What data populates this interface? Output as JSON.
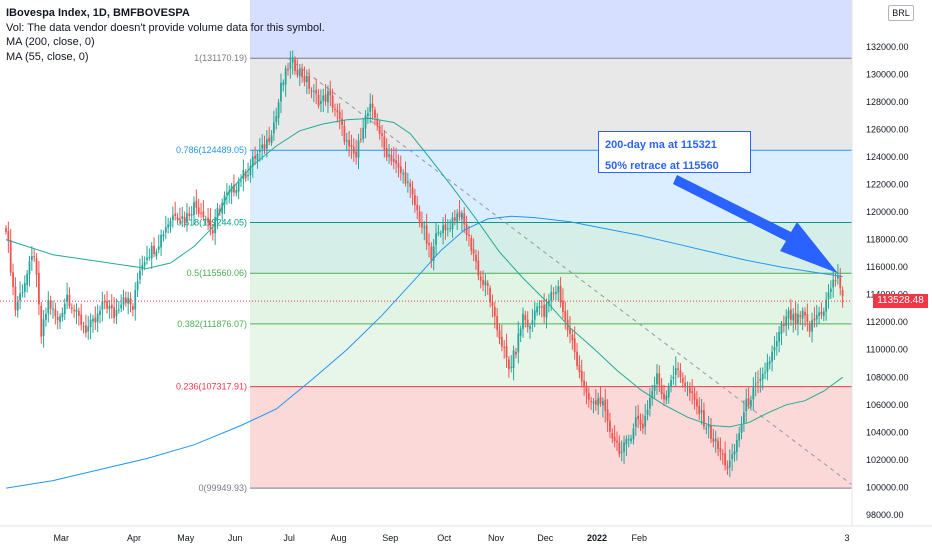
{
  "legend": {
    "title": "IBovespa Index, 1D, BMFBOVESPA",
    "vol": "Vol: The data vendor doesn't provide volume data for this symbol.",
    "ma200": "MA (200, close, 0)",
    "ma55": "MA (55, close, 0)"
  },
  "currency_badge": "BRL",
  "last_price": "113528.48",
  "annotations": [
    "200-day ma at 115321",
    "50% retrace at 115560"
  ],
  "colors": {
    "up": "#26a69a",
    "down": "#ef5350",
    "ma200": "#2196f3",
    "ma55": "#22ab94",
    "arrow": "#2962ff",
    "price_tag": "#f23645"
  },
  "chart_data": {
    "type": "candlestick",
    "symbol": "IBovespa Index",
    "interval": "1D",
    "exchange": "BMFBOVESPA",
    "x_labels": [
      "Mar",
      "Apr",
      "May",
      "Jun",
      "Jul",
      "Aug",
      "Sep",
      "Oct",
      "Nov",
      "Dec",
      "2022",
      "Feb",
      "3"
    ],
    "y_ticks": [
      "132000.00",
      "130000.00",
      "128000.00",
      "126000.00",
      "124000.00",
      "122000.00",
      "120000.00",
      "118000.00",
      "116000.00",
      "114000.00",
      "112000.00",
      "110000.00",
      "108000.00",
      "106000.00",
      "104000.00",
      "102000.00",
      "100000.00",
      "98000.00"
    ],
    "y_range": [
      97200,
      135400
    ],
    "last_price": 113528.48,
    "fib_levels": [
      {
        "ratio": "1",
        "value": "131170.19",
        "color": "#787b86"
      },
      {
        "ratio": "0.786",
        "value": "124489.05",
        "color": "#2196f3"
      },
      {
        "ratio": "0.618",
        "value": "119244.05",
        "color": "#089981"
      },
      {
        "ratio": "0.5",
        "value": "115560.06",
        "color": "#4caf50"
      },
      {
        "ratio": "0.382",
        "value": "111876.07",
        "color": "#4caf50"
      },
      {
        "ratio": "0.236",
        "value": "107317.91",
        "color": "#f23645"
      },
      {
        "ratio": "0",
        "value": "99949.93",
        "color": "#787b86"
      }
    ],
    "fib_zone_colors": [
      "#d6dfff",
      "#e8e8e8",
      "#dbeeff",
      "#d5efe8",
      "#e2f5e5",
      "#e8f5e9",
      "#fcd9d9"
    ],
    "price_path": [
      [
        0,
        119000
      ],
      [
        4,
        113000
      ],
      [
        8,
        115000
      ],
      [
        12,
        117000
      ],
      [
        15,
        111000
      ],
      [
        18,
        113500
      ],
      [
        22,
        112000
      ],
      [
        26,
        114000
      ],
      [
        30,
        112500
      ],
      [
        34,
        111500
      ],
      [
        38,
        112000
      ],
      [
        42,
        113500
      ],
      [
        46,
        112500
      ],
      [
        50,
        114000
      ],
      [
        54,
        113000
      ],
      [
        57,
        116000
      ],
      [
        60,
        117000
      ],
      [
        64,
        117500
      ],
      [
        68,
        119000
      ],
      [
        72,
        120000
      ],
      [
        76,
        119500
      ],
      [
        80,
        120500
      ],
      [
        84,
        120000
      ],
      [
        88,
        118500
      ],
      [
        90,
        120000
      ],
      [
        93,
        121000
      ],
      [
        96,
        121500
      ],
      [
        100,
        122500
      ],
      [
        103,
        123000
      ],
      [
        106,
        124000
      ],
      [
        109,
        124500
      ],
      [
        112,
        125500
      ],
      [
        115,
        127000
      ],
      [
        117,
        129000
      ],
      [
        120,
        130500
      ],
      [
        122,
        130800
      ],
      [
        125,
        130200
      ],
      [
        128,
        129500
      ],
      [
        131,
        128500
      ],
      [
        134,
        128000
      ],
      [
        137,
        128500
      ],
      [
        140,
        127500
      ],
      [
        143,
        126000
      ],
      [
        146,
        124500
      ],
      [
        149,
        124000
      ],
      [
        152,
        126500
      ],
      [
        155,
        127500
      ],
      [
        158,
        126500
      ],
      [
        161,
        124500
      ],
      [
        164,
        124000
      ],
      [
        167,
        123000
      ],
      [
        170,
        122500
      ],
      [
        173,
        121000
      ],
      [
        175,
        120000
      ],
      [
        178,
        118500
      ],
      [
        181,
        116500
      ],
      [
        184,
        119000
      ],
      [
        187,
        118500
      ],
      [
        190,
        119500
      ],
      [
        193,
        120000
      ],
      [
        196,
        118500
      ],
      [
        199,
        117000
      ],
      [
        202,
        115000
      ],
      [
        205,
        114500
      ],
      [
        208,
        112000
      ],
      [
        211,
        110500
      ],
      [
        214,
        108500
      ],
      [
        217,
        110000
      ],
      [
        220,
        112500
      ],
      [
        223,
        111500
      ],
      [
        226,
        113500
      ],
      [
        229,
        112500
      ],
      [
        232,
        114000
      ],
      [
        235,
        114500
      ],
      [
        238,
        112000
      ],
      [
        241,
        110500
      ],
      [
        244,
        108500
      ],
      [
        247,
        106500
      ],
      [
        250,
        106000
      ],
      [
        253,
        106500
      ],
      [
        256,
        104500
      ],
      [
        259,
        103500
      ],
      [
        262,
        102500
      ],
      [
        265,
        103500
      ],
      [
        268,
        105000
      ],
      [
        271,
        104500
      ],
      [
        274,
        106500
      ],
      [
        277,
        108000
      ],
      [
        280,
        106500
      ],
      [
        283,
        108000
      ],
      [
        286,
        108500
      ],
      [
        289,
        107500
      ],
      [
        292,
        106500
      ],
      [
        295,
        105500
      ],
      [
        298,
        104500
      ],
      [
        301,
        103500
      ],
      [
        304,
        102500
      ],
      [
        307,
        101500
      ],
      [
        309,
        102000
      ],
      [
        312,
        104000
      ],
      [
        315,
        106000
      ],
      [
        318,
        107000
      ],
      [
        321,
        107500
      ],
      [
        324,
        109000
      ],
      [
        327,
        110000
      ],
      [
        330,
        111500
      ],
      [
        333,
        112500
      ],
      [
        336,
        112000
      ],
      [
        339,
        112500
      ],
      [
        342,
        111500
      ],
      [
        345,
        112500
      ],
      [
        348,
        113000
      ],
      [
        351,
        114500
      ],
      [
        354,
        115500
      ],
      [
        356,
        113528
      ]
    ],
    "ma200_path": [
      [
        0,
        99949
      ],
      [
        20,
        100500
      ],
      [
        40,
        101300
      ],
      [
        60,
        102100
      ],
      [
        80,
        103100
      ],
      [
        100,
        104500
      ],
      [
        115,
        105700
      ],
      [
        130,
        107800
      ],
      [
        145,
        110000
      ],
      [
        160,
        112500
      ],
      [
        175,
        115300
      ],
      [
        185,
        117200
      ],
      [
        195,
        118700
      ],
      [
        205,
        119500
      ],
      [
        215,
        119700
      ],
      [
        225,
        119600
      ],
      [
        240,
        119300
      ],
      [
        255,
        118800
      ],
      [
        270,
        118300
      ],
      [
        285,
        117700
      ],
      [
        300,
        117100
      ],
      [
        315,
        116500
      ],
      [
        330,
        116000
      ],
      [
        345,
        115600
      ],
      [
        356,
        115321
      ]
    ],
    "ma55_path": [
      [
        0,
        118000
      ],
      [
        20,
        116900
      ],
      [
        40,
        116400
      ],
      [
        60,
        115900
      ],
      [
        70,
        116300
      ],
      [
        80,
        117500
      ],
      [
        88,
        118900
      ],
      [
        95,
        121500
      ],
      [
        105,
        123400
      ],
      [
        115,
        124800
      ],
      [
        125,
        125900
      ],
      [
        135,
        126400
      ],
      [
        145,
        126700
      ],
      [
        155,
        126800
      ],
      [
        165,
        126500
      ],
      [
        172,
        125700
      ],
      [
        180,
        124000
      ],
      [
        190,
        121800
      ],
      [
        200,
        119500
      ],
      [
        210,
        117100
      ],
      [
        220,
        115200
      ],
      [
        230,
        113500
      ],
      [
        240,
        111600
      ],
      [
        250,
        110100
      ],
      [
        260,
        108500
      ],
      [
        270,
        107100
      ],
      [
        280,
        106000
      ],
      [
        290,
        105100
      ],
      [
        300,
        104500
      ],
      [
        308,
        104400
      ],
      [
        316,
        104700
      ],
      [
        324,
        105400
      ],
      [
        332,
        106000
      ],
      [
        340,
        106300
      ],
      [
        348,
        107000
      ],
      [
        356,
        108000
      ]
    ],
    "trendline": {
      "from": [
        120,
        131170
      ],
      "to": [
        360,
        100200
      ]
    },
    "xlabel": "",
    "ylabel": ""
  }
}
